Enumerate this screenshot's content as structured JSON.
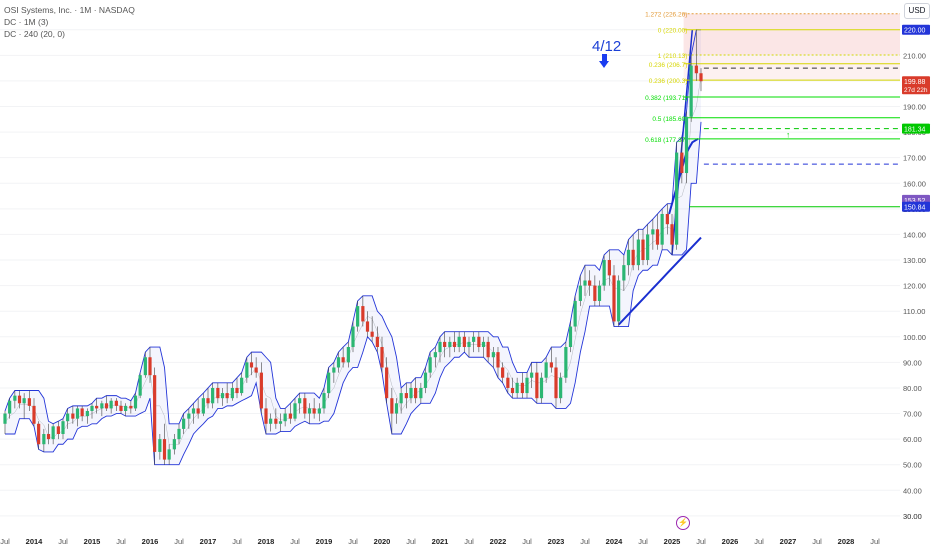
{
  "legend": {
    "symbol_line": "OSI Systems, Inc. · 1M · NASDAQ",
    "dc1": "DC · 1M (3)",
    "dc2": "DC · 240 (20, 0)"
  },
  "currency_label": "USD",
  "annotation": {
    "text": "4/12",
    "arrow_icon": "down-arrow-icon"
  },
  "colors": {
    "up": "#2bb673",
    "down": "#d93b2b",
    "channel": "#2335d8",
    "fib_line": "#00dd00",
    "fib_top": "#e39b3a",
    "fib_yellow": "#d6d600"
  },
  "chart_data": {
    "type": "candlestick",
    "title": "OSI Systems, Inc. · 1M · NASDAQ",
    "x_axis": {
      "labels": [
        "Jul",
        "2014",
        "Jul",
        "2015",
        "Jul",
        "2016",
        "Jul",
        "2017",
        "Jul",
        "2018",
        "Jul",
        "2019",
        "Jul",
        "2020",
        "Jul",
        "2021",
        "Jul",
        "2022",
        "Jul",
        "2023",
        "Jul",
        "2024",
        "Jul",
        "2025",
        "Jul",
        "2026",
        "Jul",
        "2027",
        "Jul",
        "2028",
        "Jul"
      ],
      "start": 2013.5,
      "step": 0.5
    },
    "y_axis": {
      "ticks": [
        30,
        40,
        50,
        60,
        70,
        80,
        90,
        100,
        110,
        120,
        130,
        140,
        150,
        160,
        170,
        180,
        190,
        200,
        210,
        220
      ],
      "ylim": [
        30,
        225
      ],
      "currency": "USD"
    },
    "price_labels": [
      {
        "value": 220.0,
        "text": "220.00",
        "color": "#2335d8"
      },
      {
        "value": 199.88,
        "text": "199.88",
        "sub": "27d 22h",
        "color": "#d93b2b"
      },
      {
        "value": 181.34,
        "text": "181.34",
        "color": "#00c800"
      },
      {
        "value": 153.52,
        "text": "153.52",
        "color": "#7e57c2"
      },
      {
        "value": 150.84,
        "text": "150.84",
        "color": "#2335d8"
      }
    ],
    "fib_levels": [
      {
        "ratio": "1.272",
        "value": 226.26,
        "text": "1.272 (226.26)",
        "color": "#e39b3a"
      },
      {
        "ratio": "0",
        "value": 220.0,
        "text": "0 (220.00)",
        "color": "#d6d600"
      },
      {
        "ratio": "1",
        "value": 210.13,
        "text": "1 (210.13)",
        "color": "#d6d600"
      },
      {
        "ratio": "0.236",
        "value": 206.7,
        "text": "0.236 (206.7)",
        "color": "#d6d600"
      },
      {
        "ratio": "0.236",
        "value": 200.3,
        "text": "0.236 (200.3)",
        "color": "#d6d600"
      },
      {
        "ratio": "0.382",
        "value": 193.71,
        "text": "0.382 (193.71)",
        "color": "#00dd00"
      },
      {
        "ratio": "0.5",
        "value": 185.6,
        "text": "0.5 (185.60)",
        "color": "#00dd00"
      },
      {
        "ratio": "0.618",
        "value": 177.37,
        "text": "0.618 (177.37)",
        "color": "#00dd00"
      }
    ],
    "horizontal_lines": [
      {
        "value": 205.0,
        "style": "dashed",
        "color": "#333333"
      },
      {
        "value": 181.34,
        "style": "dashed",
        "color": "#00c800"
      },
      {
        "value": 167.5,
        "style": "dashed",
        "color": "#2335d8"
      },
      {
        "value": 150.84,
        "style": "solid",
        "color": "#00c800"
      }
    ],
    "candles": [
      {
        "t": 2013.5,
        "o": 66,
        "h": 71,
        "l": 62,
        "c": 70
      },
      {
        "t": 2013.58,
        "o": 70,
        "h": 76,
        "l": 68,
        "c": 75
      },
      {
        "t": 2013.67,
        "o": 75,
        "h": 79,
        "l": 72,
        "c": 77
      },
      {
        "t": 2013.75,
        "o": 77,
        "h": 79,
        "l": 72,
        "c": 74
      },
      {
        "t": 2013.83,
        "o": 74,
        "h": 78,
        "l": 68,
        "c": 76
      },
      {
        "t": 2013.92,
        "o": 76,
        "h": 79,
        "l": 71,
        "c": 73
      },
      {
        "t": 2014.0,
        "o": 73,
        "h": 76,
        "l": 65,
        "c": 66
      },
      {
        "t": 2014.08,
        "o": 66,
        "h": 67,
        "l": 56,
        "c": 58
      },
      {
        "t": 2014.17,
        "o": 58,
        "h": 64,
        "l": 55,
        "c": 62
      },
      {
        "t": 2014.25,
        "o": 62,
        "h": 66,
        "l": 58,
        "c": 60
      },
      {
        "t": 2014.33,
        "o": 60,
        "h": 66,
        "l": 58,
        "c": 65
      },
      {
        "t": 2014.42,
        "o": 65,
        "h": 67,
        "l": 60,
        "c": 62
      },
      {
        "t": 2014.5,
        "o": 62,
        "h": 68,
        "l": 60,
        "c": 67
      },
      {
        "t": 2014.58,
        "o": 67,
        "h": 72,
        "l": 64,
        "c": 70
      },
      {
        "t": 2014.67,
        "o": 70,
        "h": 73,
        "l": 66,
        "c": 68
      },
      {
        "t": 2014.75,
        "o": 68,
        "h": 73,
        "l": 65,
        "c": 72
      },
      {
        "t": 2014.83,
        "o": 72,
        "h": 73,
        "l": 67,
        "c": 69
      },
      {
        "t": 2014.92,
        "o": 69,
        "h": 72,
        "l": 66,
        "c": 71
      },
      {
        "t": 2015.0,
        "o": 71,
        "h": 74,
        "l": 68,
        "c": 73
      },
      {
        "t": 2015.08,
        "o": 73,
        "h": 76,
        "l": 70,
        "c": 72
      },
      {
        "t": 2015.17,
        "o": 72,
        "h": 75,
        "l": 69,
        "c": 74
      },
      {
        "t": 2015.25,
        "o": 74,
        "h": 77,
        "l": 71,
        "c": 72
      },
      {
        "t": 2015.33,
        "o": 72,
        "h": 76,
        "l": 70,
        "c": 75
      },
      {
        "t": 2015.42,
        "o": 75,
        "h": 76,
        "l": 71,
        "c": 73
      },
      {
        "t": 2015.5,
        "o": 73,
        "h": 75,
        "l": 70,
        "c": 71
      },
      {
        "t": 2015.58,
        "o": 71,
        "h": 74,
        "l": 69,
        "c": 73
      },
      {
        "t": 2015.67,
        "o": 73,
        "h": 75,
        "l": 70,
        "c": 72
      },
      {
        "t": 2015.75,
        "o": 72,
        "h": 78,
        "l": 71,
        "c": 77
      },
      {
        "t": 2015.83,
        "o": 77,
        "h": 86,
        "l": 76,
        "c": 85
      },
      {
        "t": 2015.92,
        "o": 85,
        "h": 94,
        "l": 84,
        "c": 92
      },
      {
        "t": 2016.0,
        "o": 92,
        "h": 96,
        "l": 82,
        "c": 85
      },
      {
        "t": 2016.08,
        "o": 85,
        "h": 88,
        "l": 50,
        "c": 55
      },
      {
        "t": 2016.17,
        "o": 55,
        "h": 62,
        "l": 52,
        "c": 60
      },
      {
        "t": 2016.25,
        "o": 60,
        "h": 66,
        "l": 50,
        "c": 52
      },
      {
        "t": 2016.33,
        "o": 52,
        "h": 58,
        "l": 50,
        "c": 56
      },
      {
        "t": 2016.42,
        "o": 56,
        "h": 62,
        "l": 54,
        "c": 60
      },
      {
        "t": 2016.5,
        "o": 60,
        "h": 66,
        "l": 58,
        "c": 64
      },
      {
        "t": 2016.58,
        "o": 64,
        "h": 70,
        "l": 62,
        "c": 68
      },
      {
        "t": 2016.67,
        "o": 68,
        "h": 72,
        "l": 64,
        "c": 70
      },
      {
        "t": 2016.75,
        "o": 70,
        "h": 74,
        "l": 66,
        "c": 72
      },
      {
        "t": 2016.83,
        "o": 72,
        "h": 76,
        "l": 68,
        "c": 70
      },
      {
        "t": 2016.92,
        "o": 70,
        "h": 78,
        "l": 69,
        "c": 76
      },
      {
        "t": 2017.0,
        "o": 76,
        "h": 80,
        "l": 72,
        "c": 74
      },
      {
        "t": 2017.08,
        "o": 74,
        "h": 82,
        "l": 72,
        "c": 80
      },
      {
        "t": 2017.17,
        "o": 80,
        "h": 82,
        "l": 74,
        "c": 76
      },
      {
        "t": 2017.25,
        "o": 76,
        "h": 80,
        "l": 73,
        "c": 78
      },
      {
        "t": 2017.33,
        "o": 78,
        "h": 82,
        "l": 74,
        "c": 76
      },
      {
        "t": 2017.42,
        "o": 76,
        "h": 82,
        "l": 75,
        "c": 80
      },
      {
        "t": 2017.5,
        "o": 80,
        "h": 84,
        "l": 76,
        "c": 78
      },
      {
        "t": 2017.58,
        "o": 78,
        "h": 86,
        "l": 77,
        "c": 84
      },
      {
        "t": 2017.67,
        "o": 84,
        "h": 92,
        "l": 82,
        "c": 90
      },
      {
        "t": 2017.75,
        "o": 90,
        "h": 94,
        "l": 85,
        "c": 88
      },
      {
        "t": 2017.83,
        "o": 88,
        "h": 92,
        "l": 84,
        "c": 86
      },
      {
        "t": 2017.92,
        "o": 86,
        "h": 90,
        "l": 70,
        "c": 72
      },
      {
        "t": 2018.0,
        "o": 72,
        "h": 76,
        "l": 62,
        "c": 66
      },
      {
        "t": 2018.08,
        "o": 66,
        "h": 70,
        "l": 63,
        "c": 68
      },
      {
        "t": 2018.17,
        "o": 68,
        "h": 72,
        "l": 64,
        "c": 66
      },
      {
        "t": 2018.25,
        "o": 66,
        "h": 70,
        "l": 63,
        "c": 67
      },
      {
        "t": 2018.33,
        "o": 67,
        "h": 72,
        "l": 65,
        "c": 70
      },
      {
        "t": 2018.42,
        "o": 70,
        "h": 74,
        "l": 66,
        "c": 68
      },
      {
        "t": 2018.5,
        "o": 68,
        "h": 76,
        "l": 67,
        "c": 74
      },
      {
        "t": 2018.58,
        "o": 74,
        "h": 78,
        "l": 70,
        "c": 76
      },
      {
        "t": 2018.67,
        "o": 76,
        "h": 78,
        "l": 68,
        "c": 70
      },
      {
        "t": 2018.75,
        "o": 70,
        "h": 74,
        "l": 66,
        "c": 72
      },
      {
        "t": 2018.83,
        "o": 72,
        "h": 76,
        "l": 68,
        "c": 70
      },
      {
        "t": 2018.92,
        "o": 70,
        "h": 74,
        "l": 67,
        "c": 72
      },
      {
        "t": 2019.0,
        "o": 72,
        "h": 80,
        "l": 70,
        "c": 78
      },
      {
        "t": 2019.08,
        "o": 78,
        "h": 88,
        "l": 76,
        "c": 86
      },
      {
        "t": 2019.17,
        "o": 86,
        "h": 90,
        "l": 82,
        "c": 88
      },
      {
        "t": 2019.25,
        "o": 88,
        "h": 94,
        "l": 86,
        "c": 92
      },
      {
        "t": 2019.33,
        "o": 92,
        "h": 96,
        "l": 88,
        "c": 90
      },
      {
        "t": 2019.42,
        "o": 90,
        "h": 98,
        "l": 88,
        "c": 96
      },
      {
        "t": 2019.5,
        "o": 96,
        "h": 106,
        "l": 94,
        "c": 104
      },
      {
        "t": 2019.58,
        "o": 104,
        "h": 114,
        "l": 102,
        "c": 112
      },
      {
        "t": 2019.67,
        "o": 112,
        "h": 116,
        "l": 104,
        "c": 106
      },
      {
        "t": 2019.75,
        "o": 106,
        "h": 110,
        "l": 100,
        "c": 102
      },
      {
        "t": 2019.83,
        "o": 102,
        "h": 108,
        "l": 98,
        "c": 100
      },
      {
        "t": 2019.92,
        "o": 100,
        "h": 104,
        "l": 94,
        "c": 96
      },
      {
        "t": 2020.0,
        "o": 96,
        "h": 100,
        "l": 86,
        "c": 88
      },
      {
        "t": 2020.08,
        "o": 88,
        "h": 92,
        "l": 74,
        "c": 76
      },
      {
        "t": 2020.17,
        "o": 76,
        "h": 80,
        "l": 62,
        "c": 70
      },
      {
        "t": 2020.25,
        "o": 70,
        "h": 76,
        "l": 66,
        "c": 74
      },
      {
        "t": 2020.33,
        "o": 74,
        "h": 80,
        "l": 70,
        "c": 78
      },
      {
        "t": 2020.42,
        "o": 78,
        "h": 82,
        "l": 72,
        "c": 76
      },
      {
        "t": 2020.5,
        "o": 76,
        "h": 82,
        "l": 74,
        "c": 80
      },
      {
        "t": 2020.58,
        "o": 80,
        "h": 84,
        "l": 74,
        "c": 76
      },
      {
        "t": 2020.67,
        "o": 76,
        "h": 82,
        "l": 74,
        "c": 80
      },
      {
        "t": 2020.75,
        "o": 80,
        "h": 88,
        "l": 78,
        "c": 86
      },
      {
        "t": 2020.83,
        "o": 86,
        "h": 94,
        "l": 84,
        "c": 92
      },
      {
        "t": 2020.92,
        "o": 92,
        "h": 96,
        "l": 88,
        "c": 94
      },
      {
        "t": 2021.0,
        "o": 94,
        "h": 100,
        "l": 90,
        "c": 98
      },
      {
        "t": 2021.08,
        "o": 98,
        "h": 102,
        "l": 92,
        "c": 96
      },
      {
        "t": 2021.17,
        "o": 96,
        "h": 100,
        "l": 92,
        "c": 98
      },
      {
        "t": 2021.25,
        "o": 98,
        "h": 102,
        "l": 94,
        "c": 96
      },
      {
        "t": 2021.33,
        "o": 96,
        "h": 102,
        "l": 94,
        "c": 100
      },
      {
        "t": 2021.42,
        "o": 100,
        "h": 102,
        "l": 94,
        "c": 96
      },
      {
        "t": 2021.5,
        "o": 96,
        "h": 100,
        "l": 92,
        "c": 98
      },
      {
        "t": 2021.58,
        "o": 98,
        "h": 102,
        "l": 94,
        "c": 100
      },
      {
        "t": 2021.67,
        "o": 100,
        "h": 102,
        "l": 94,
        "c": 96
      },
      {
        "t": 2021.75,
        "o": 96,
        "h": 100,
        "l": 92,
        "c": 98
      },
      {
        "t": 2021.83,
        "o": 98,
        "h": 100,
        "l": 90,
        "c": 92
      },
      {
        "t": 2021.92,
        "o": 92,
        "h": 96,
        "l": 88,
        "c": 94
      },
      {
        "t": 2022.0,
        "o": 94,
        "h": 96,
        "l": 84,
        "c": 88
      },
      {
        "t": 2022.08,
        "o": 88,
        "h": 90,
        "l": 82,
        "c": 84
      },
      {
        "t": 2022.17,
        "o": 84,
        "h": 86,
        "l": 78,
        "c": 80
      },
      {
        "t": 2022.25,
        "o": 80,
        "h": 84,
        "l": 76,
        "c": 78
      },
      {
        "t": 2022.33,
        "o": 78,
        "h": 84,
        "l": 76,
        "c": 82
      },
      {
        "t": 2022.42,
        "o": 82,
        "h": 86,
        "l": 76,
        "c": 78
      },
      {
        "t": 2022.5,
        "o": 78,
        "h": 86,
        "l": 76,
        "c": 84
      },
      {
        "t": 2022.58,
        "o": 84,
        "h": 90,
        "l": 80,
        "c": 86
      },
      {
        "t": 2022.67,
        "o": 86,
        "h": 90,
        "l": 74,
        "c": 76
      },
      {
        "t": 2022.75,
        "o": 76,
        "h": 86,
        "l": 74,
        "c": 84
      },
      {
        "t": 2022.83,
        "o": 84,
        "h": 92,
        "l": 82,
        "c": 90
      },
      {
        "t": 2022.92,
        "o": 90,
        "h": 96,
        "l": 86,
        "c": 88
      },
      {
        "t": 2023.0,
        "o": 88,
        "h": 92,
        "l": 72,
        "c": 76
      },
      {
        "t": 2023.08,
        "o": 76,
        "h": 86,
        "l": 74,
        "c": 84
      },
      {
        "t": 2023.17,
        "o": 84,
        "h": 98,
        "l": 82,
        "c": 96
      },
      {
        "t": 2023.25,
        "o": 96,
        "h": 106,
        "l": 94,
        "c": 104
      },
      {
        "t": 2023.33,
        "o": 104,
        "h": 116,
        "l": 102,
        "c": 114
      },
      {
        "t": 2023.42,
        "o": 114,
        "h": 124,
        "l": 112,
        "c": 120
      },
      {
        "t": 2023.5,
        "o": 120,
        "h": 128,
        "l": 116,
        "c": 122
      },
      {
        "t": 2023.58,
        "o": 122,
        "h": 126,
        "l": 116,
        "c": 120
      },
      {
        "t": 2023.67,
        "o": 120,
        "h": 124,
        "l": 112,
        "c": 114
      },
      {
        "t": 2023.75,
        "o": 114,
        "h": 122,
        "l": 112,
        "c": 120
      },
      {
        "t": 2023.83,
        "o": 120,
        "h": 132,
        "l": 118,
        "c": 130
      },
      {
        "t": 2023.92,
        "o": 130,
        "h": 134,
        "l": 120,
        "c": 124
      },
      {
        "t": 2024.0,
        "o": 124,
        "h": 128,
        "l": 104,
        "c": 106
      },
      {
        "t": 2024.08,
        "o": 106,
        "h": 124,
        "l": 104,
        "c": 122
      },
      {
        "t": 2024.17,
        "o": 122,
        "h": 132,
        "l": 118,
        "c": 128
      },
      {
        "t": 2024.25,
        "o": 128,
        "h": 138,
        "l": 124,
        "c": 134
      },
      {
        "t": 2024.33,
        "o": 134,
        "h": 140,
        "l": 126,
        "c": 128
      },
      {
        "t": 2024.42,
        "o": 128,
        "h": 142,
        "l": 126,
        "c": 138
      },
      {
        "t": 2024.5,
        "o": 138,
        "h": 142,
        "l": 128,
        "c": 130
      },
      {
        "t": 2024.58,
        "o": 130,
        "h": 144,
        "l": 128,
        "c": 140
      },
      {
        "t": 2024.67,
        "o": 140,
        "h": 146,
        "l": 134,
        "c": 142
      },
      {
        "t": 2024.75,
        "o": 142,
        "h": 148,
        "l": 134,
        "c": 136
      },
      {
        "t": 2024.83,
        "o": 136,
        "h": 150,
        "l": 134,
        "c": 148
      },
      {
        "t": 2024.92,
        "o": 148,
        "h": 152,
        "l": 140,
        "c": 144
      },
      {
        "t": 2025.0,
        "o": 144,
        "h": 148,
        "l": 132,
        "c": 136
      },
      {
        "t": 2025.08,
        "o": 136,
        "h": 176,
        "l": 134,
        "c": 172
      },
      {
        "t": 2025.17,
        "o": 172,
        "h": 178,
        "l": 160,
        "c": 164
      },
      {
        "t": 2025.25,
        "o": 164,
        "h": 188,
        "l": 160,
        "c": 186
      },
      {
        "t": 2025.33,
        "o": 186,
        "h": 210,
        "l": 184,
        "c": 206
      },
      {
        "t": 2025.42,
        "o": 206,
        "h": 220,
        "l": 200,
        "c": 203
      },
      {
        "t": 2025.5,
        "o": 203,
        "h": 205,
        "l": 196,
        "c": 199.88
      }
    ]
  }
}
